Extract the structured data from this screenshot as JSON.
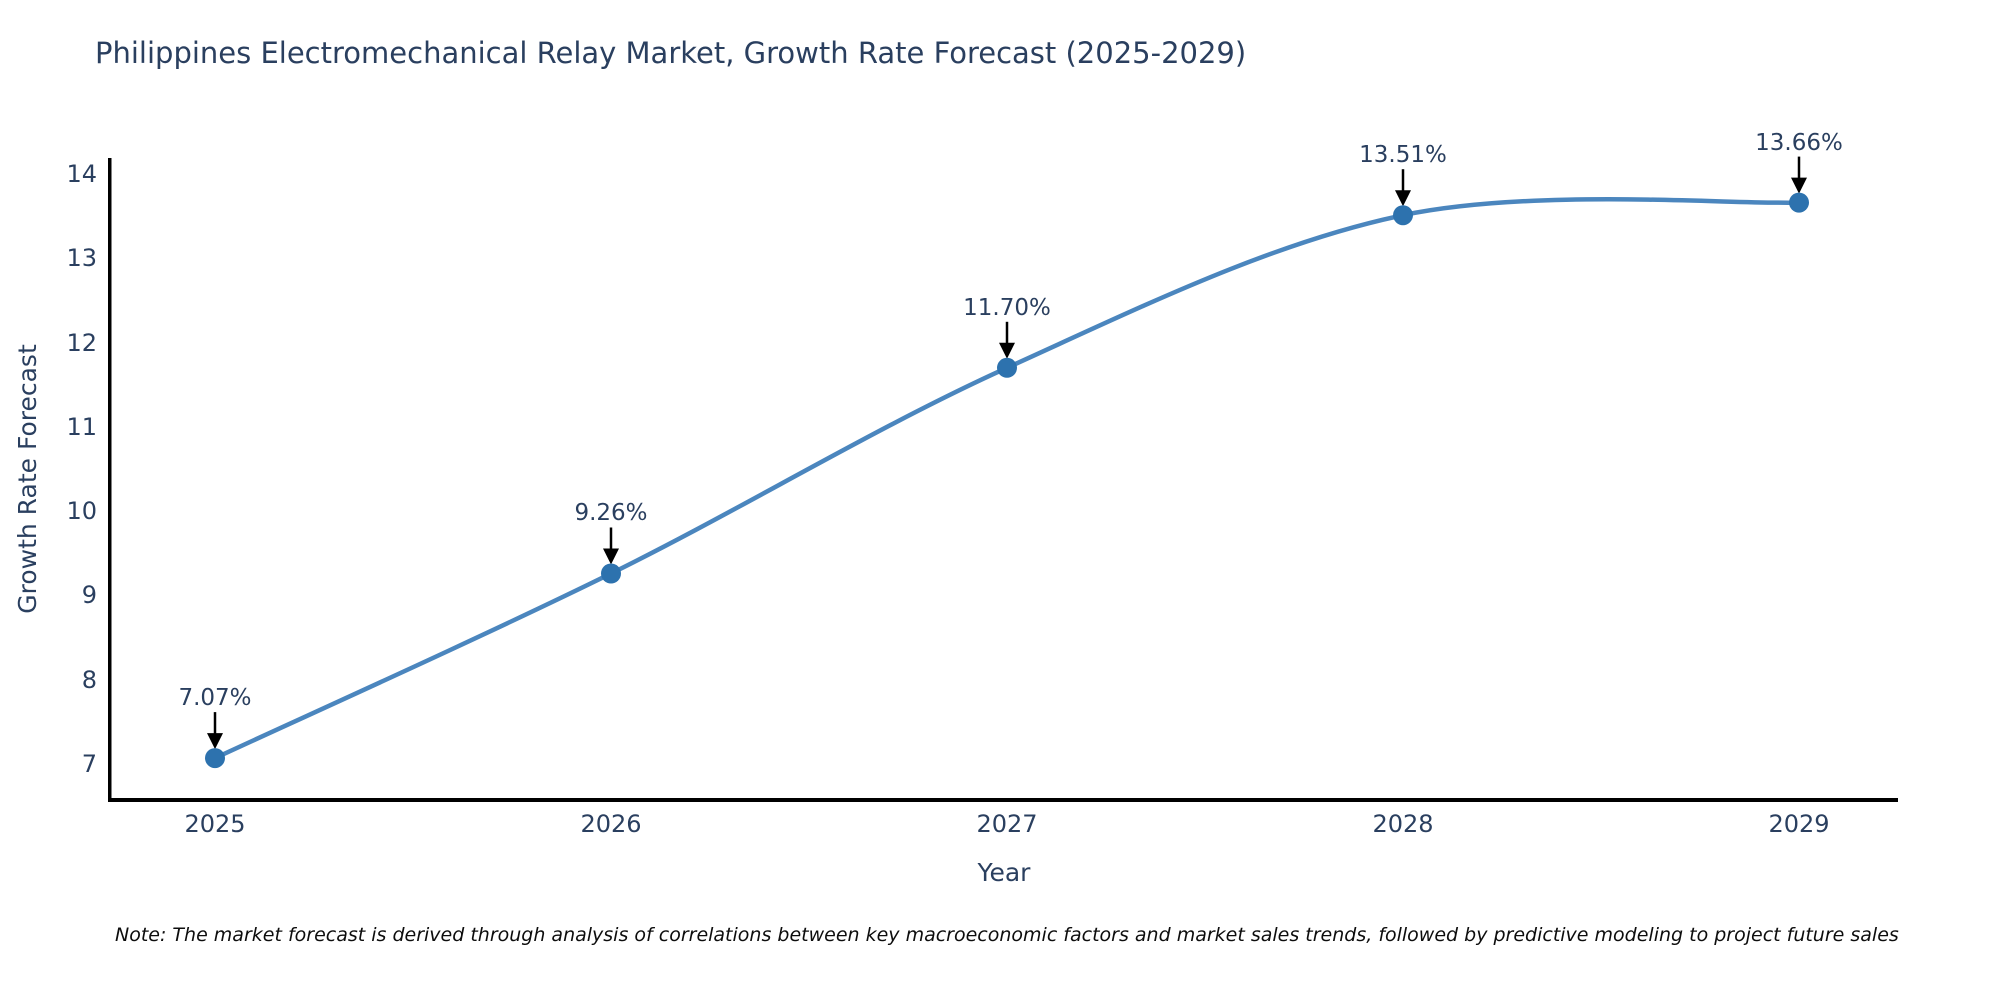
{
  "title": "Philippines Electromechanical Relay Market, Growth Rate Forecast (2025-2029)",
  "note": "Note: The market forecast is derived through analysis of correlations between key macroeconomic factors and market sales trends, followed by predictive modeling to project future sales",
  "chart_data": {
    "type": "line",
    "title": "Philippines Electromechanical Relay Market, Growth Rate Forecast (2025-2029)",
    "xlabel": "Year",
    "ylabel": "Growth Rate Forecast",
    "x": [
      2025,
      2026,
      2027,
      2028,
      2029
    ],
    "values": [
      7.07,
      9.26,
      11.7,
      13.51,
      13.66
    ],
    "point_labels": [
      "7.07%",
      "9.26%",
      "11.70%",
      "13.51%",
      "13.66%"
    ],
    "yticks": [
      7,
      8,
      9,
      10,
      11,
      12,
      13,
      14
    ],
    "ylim": [
      6.6,
      14.2
    ],
    "line_shape": "spline",
    "grid": false,
    "legend": "none",
    "colors": {
      "line": "#4b86be",
      "marker": "#2d72ae",
      "axis_line": "#000000",
      "text": "#2a3f5f",
      "arrow": "#000000",
      "background": "#ffffff"
    }
  }
}
